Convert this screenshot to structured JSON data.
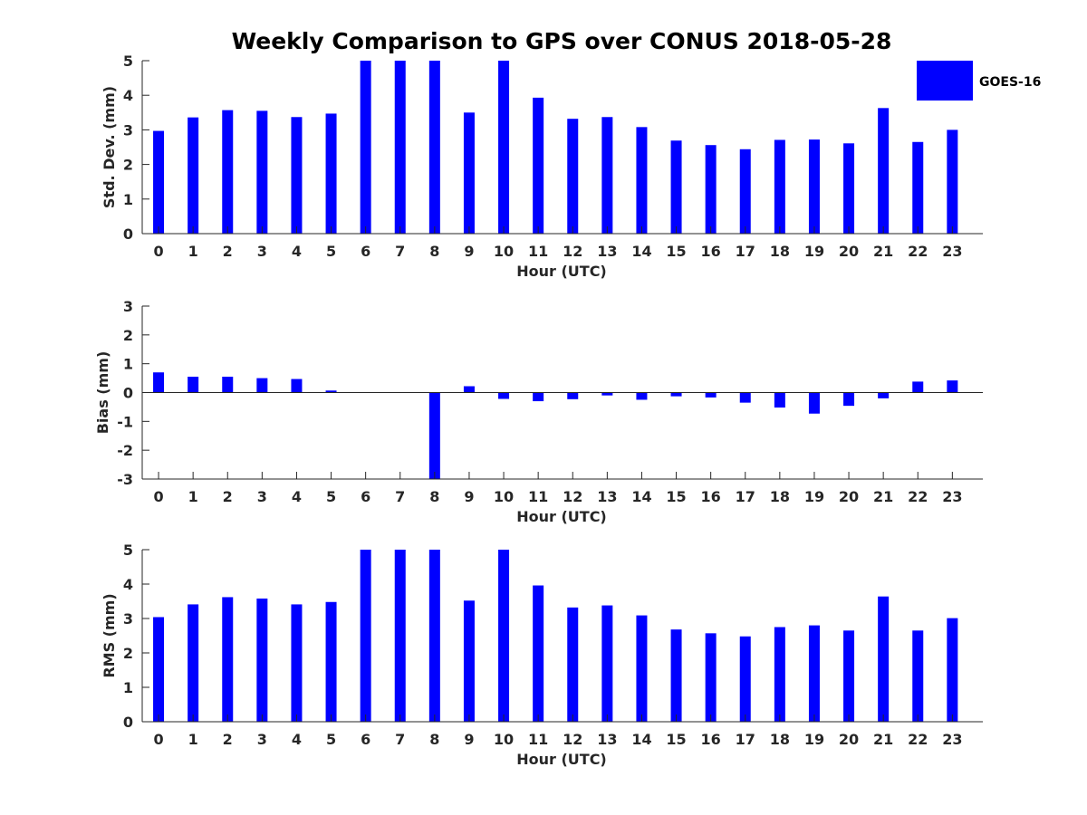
{
  "title": "Weekly Comparison to GPS over CONUS 2018-05-28",
  "legend": {
    "label": "GOES-16",
    "color": "#0000ff"
  },
  "chart_data": [
    {
      "type": "bar",
      "name": "std-dev",
      "xlabel": "Hour (UTC)",
      "ylabel": "Std. Dev. (mm)",
      "ylim": [
        0,
        5
      ],
      "yticks": [
        0,
        1,
        2,
        3,
        4,
        5
      ],
      "categories": [
        "0",
        "1",
        "2",
        "3",
        "4",
        "5",
        "6",
        "7",
        "8",
        "9",
        "10",
        "11",
        "12",
        "13",
        "14",
        "15",
        "16",
        "17",
        "18",
        "19",
        "20",
        "21",
        "22",
        "23"
      ],
      "series": [
        {
          "name": "GOES-16",
          "color": "#0000ff",
          "values": [
            2.97,
            3.36,
            3.57,
            3.55,
            3.37,
            3.47,
            5.0,
            5.0,
            5.0,
            3.5,
            5.0,
            3.93,
            3.32,
            3.37,
            3.08,
            2.69,
            2.56,
            2.44,
            2.71,
            2.72,
            2.61,
            3.63,
            2.65,
            3.0
          ]
        }
      ]
    },
    {
      "type": "bar",
      "name": "bias",
      "xlabel": "Hour (UTC)",
      "ylabel": "Bias (mm)",
      "ylim": [
        -3,
        3
      ],
      "yticks": [
        -3,
        -2,
        -1,
        0,
        1,
        2,
        3
      ],
      "categories": [
        "0",
        "1",
        "2",
        "3",
        "4",
        "5",
        "6",
        "7",
        "8",
        "9",
        "10",
        "11",
        "12",
        "13",
        "14",
        "15",
        "16",
        "17",
        "18",
        "19",
        "20",
        "21",
        "22",
        "23"
      ],
      "series": [
        {
          "name": "GOES-16",
          "color": "#0000ff",
          "values": [
            0.7,
            0.55,
            0.55,
            0.5,
            0.47,
            0.07,
            0.0,
            0.0,
            -3.0,
            0.22,
            -0.22,
            -0.3,
            -0.23,
            -0.1,
            -0.25,
            -0.13,
            -0.17,
            -0.35,
            -0.52,
            -0.73,
            -0.46,
            -0.2,
            0.38,
            0.42
          ]
        }
      ]
    },
    {
      "type": "bar",
      "name": "rms",
      "xlabel": "Hour (UTC)",
      "ylabel": "RMS (mm)",
      "ylim": [
        0,
        5
      ],
      "yticks": [
        0,
        1,
        2,
        3,
        4,
        5
      ],
      "categories": [
        "0",
        "1",
        "2",
        "3",
        "4",
        "5",
        "6",
        "7",
        "8",
        "9",
        "10",
        "11",
        "12",
        "13",
        "14",
        "15",
        "16",
        "17",
        "18",
        "19",
        "20",
        "21",
        "22",
        "23"
      ],
      "series": [
        {
          "name": "GOES-16",
          "color": "#0000ff",
          "values": [
            3.04,
            3.41,
            3.62,
            3.58,
            3.41,
            3.48,
            5.0,
            5.0,
            5.0,
            3.52,
            5.0,
            3.96,
            3.32,
            3.38,
            3.09,
            2.68,
            2.57,
            2.48,
            2.75,
            2.8,
            2.65,
            3.64,
            2.65,
            3.01
          ]
        }
      ]
    }
  ]
}
